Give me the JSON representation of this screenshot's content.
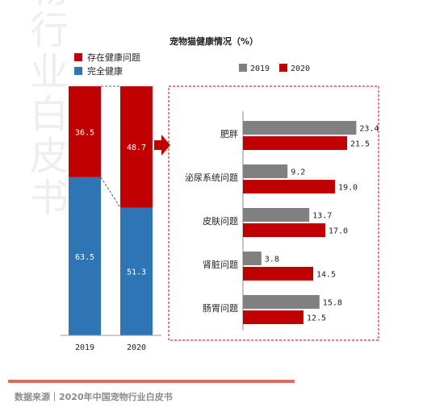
{
  "chart_data": [
    {
      "type": "bar",
      "stacked": true,
      "title": "宠物猫健康情况（%）",
      "categories": [
        "2019",
        "2020"
      ],
      "series": [
        {
          "name": "完全健康",
          "values": [
            63.5,
            51.3
          ],
          "color": "#2e75b6"
        },
        {
          "name": "存在健康问题",
          "values": [
            36.5,
            48.7
          ],
          "color": "#c00000"
        }
      ],
      "ylim": [
        0,
        100
      ],
      "legend_position": "top-left"
    },
    {
      "type": "bar",
      "orientation": "horizontal",
      "categories": [
        "肥胖",
        "泌尿系统问题",
        "皮肤问题",
        "肾脏问题",
        "肠胃问题"
      ],
      "series": [
        {
          "name": "2019",
          "values": [
            23.4,
            9.2,
            13.7,
            3.8,
            15.8
          ],
          "color": "#808080"
        },
        {
          "name": "2020",
          "values": [
            21.5,
            19.0,
            17.0,
            14.5,
            12.5
          ],
          "color": "#c00000"
        }
      ],
      "legend_position": "top"
    }
  ],
  "watermark": "宠物行业白皮书",
  "source": "数据来源｜2020年中国宠物行业白皮书"
}
